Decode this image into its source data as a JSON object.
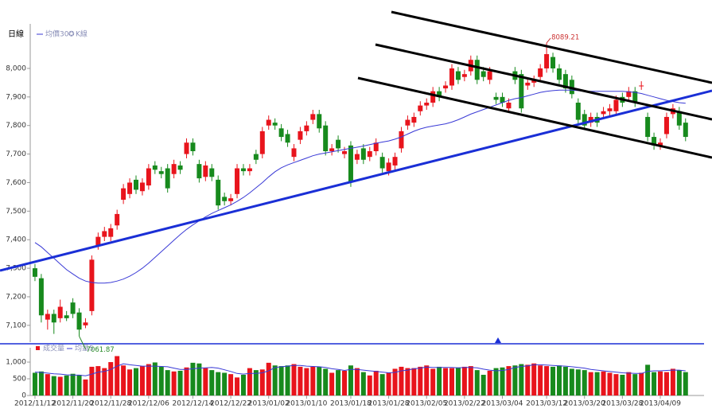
{
  "chart_data": [
    {
      "type": "candlestick",
      "title": "日線",
      "legend_name": "K線",
      "up_color": "#e8141c",
      "down_color": "#178a1d",
      "categories": [
        "2012/11/12",
        null,
        null,
        null,
        null,
        null,
        "2012/11/20",
        null,
        null,
        null,
        null,
        null,
        "2012/11/28",
        null,
        null,
        null,
        null,
        null,
        "2012/12/06",
        null,
        null,
        null,
        null,
        null,
        null,
        "2012/12/14",
        null,
        null,
        null,
        null,
        null,
        "2012/12/22",
        null,
        null,
        null,
        null,
        null,
        "2013/01/02",
        null,
        null,
        null,
        null,
        null,
        "2013/01/10",
        null,
        null,
        null,
        null,
        null,
        null,
        "2013/01/18",
        null,
        null,
        null,
        null,
        null,
        "2013/01/28",
        null,
        null,
        null,
        null,
        null,
        "2013/02/05",
        null,
        null,
        null,
        null,
        null,
        "2013/02/22",
        null,
        null,
        null,
        null,
        null,
        "2013/03/04",
        null,
        null,
        null,
        null,
        null,
        null,
        "2013/03/12",
        null,
        null,
        null,
        null,
        null,
        "2013/03/20",
        null,
        null,
        null,
        null,
        null,
        "2013/03/28",
        null,
        null,
        null,
        null,
        null,
        "2013/04/09",
        null,
        null,
        null,
        null
      ],
      "open": [
        7300,
        7265,
        7120,
        7140,
        7125,
        7135,
        7180,
        7145,
        7100,
        7150,
        7380,
        7410,
        7410,
        7450,
        7540,
        7560,
        7610,
        7570,
        7590,
        7660,
        7640,
        7650,
        7630,
        7660,
        7700,
        7740,
        7665,
        7620,
        7650,
        7610,
        7550,
        7535,
        7560,
        7650,
        7640,
        7700,
        7700,
        7800,
        7810,
        7790,
        7770,
        7690,
        7750,
        7780,
        7820,
        7840,
        7800,
        7710,
        7750,
        7700,
        7730,
        7680,
        7720,
        7690,
        7710,
        7690,
        7640,
        7660,
        7720,
        7800,
        7810,
        7850,
        7870,
        7880,
        7920,
        7930,
        7940,
        7990,
        7970,
        7990,
        8030,
        7990,
        7960,
        7900,
        7900,
        7860,
        7990,
        7980,
        7940,
        7950,
        7970,
        8000,
        8040,
        8000,
        7980,
        7960,
        7880,
        7840,
        7810,
        7830,
        7840,
        7850,
        7850,
        7900,
        7900,
        7920,
        7940,
        7830,
        7760,
        7730,
        7770,
        7840,
        7850,
        7810
      ],
      "high": [
        7315,
        7280,
        7155,
        7155,
        7190,
        7150,
        7195,
        7160,
        7125,
        7345,
        7425,
        7445,
        7455,
        7505,
        7595,
        7615,
        7625,
        7615,
        7665,
        7675,
        7655,
        7665,
        7680,
        7675,
        7755,
        7755,
        7680,
        7675,
        7665,
        7625,
        7565,
        7560,
        7665,
        7665,
        7665,
        7715,
        7795,
        7835,
        7825,
        7805,
        7785,
        7735,
        7795,
        7815,
        7855,
        7855,
        7815,
        7735,
        7765,
        7725,
        7745,
        7715,
        7735,
        7725,
        7755,
        7705,
        7685,
        7705,
        7795,
        7835,
        7845,
        7885,
        7895,
        7935,
        7935,
        7955,
        8015,
        8005,
        7995,
        8045,
        8045,
        8005,
        8005,
        7915,
        7915,
        7895,
        8005,
        7995,
        7965,
        7975,
        8015,
        8089.21,
        8055,
        8015,
        7995,
        7975,
        7895,
        7855,
        7845,
        7845,
        7865,
        7875,
        7905,
        7915,
        7935,
        7935,
        7955,
        7845,
        7775,
        7755,
        7845,
        7875,
        7865,
        7825
      ],
      "low": [
        7255,
        7110,
        7085,
        7070,
        7110,
        7115,
        7125,
        7061.87,
        7090,
        7135,
        7365,
        7395,
        7395,
        7435,
        7525,
        7545,
        7560,
        7555,
        7575,
        7630,
        7615,
        7565,
        7615,
        7630,
        7685,
        7695,
        7600,
        7605,
        7605,
        7505,
        7520,
        7520,
        7545,
        7625,
        7625,
        7665,
        7685,
        7785,
        7785,
        7745,
        7725,
        7675,
        7735,
        7765,
        7805,
        7775,
        7695,
        7695,
        7705,
        7685,
        7585,
        7665,
        7665,
        7675,
        7695,
        7635,
        7625,
        7645,
        7705,
        7785,
        7795,
        7835,
        7855,
        7865,
        7885,
        7915,
        7925,
        7945,
        7955,
        7975,
        7945,
        7955,
        7945,
        7875,
        7865,
        7845,
        7945,
        7845,
        7925,
        7935,
        7955,
        7985,
        7985,
        7945,
        7915,
        7895,
        7805,
        7785,
        7795,
        7795,
        7825,
        7835,
        7835,
        7865,
        7885,
        7865,
        7925,
        7745,
        7715,
        7715,
        7755,
        7825,
        7785,
        7745
      ],
      "close": [
        7270,
        7135,
        7140,
        7110,
        7165,
        7125,
        7140,
        7085,
        7110,
        7330,
        7410,
        7430,
        7440,
        7490,
        7580,
        7600,
        7575,
        7600,
        7650,
        7645,
        7630,
        7580,
        7665,
        7645,
        7740,
        7710,
        7615,
        7660,
        7620,
        7520,
        7535,
        7545,
        7650,
        7640,
        7650,
        7680,
        7780,
        7820,
        7800,
        7760,
        7740,
        7720,
        7780,
        7800,
        7840,
        7790,
        7710,
        7720,
        7720,
        7710,
        7600,
        7700,
        7680,
        7710,
        7740,
        7650,
        7670,
        7690,
        7780,
        7820,
        7830,
        7870,
        7880,
        7920,
        7900,
        7940,
        8000,
        7960,
        7980,
        8030,
        7960,
        7970,
        7990,
        7890,
        7880,
        7880,
        7960,
        7860,
        7950,
        7960,
        8000,
        8050,
        8000,
        7960,
        7930,
        7910,
        7820,
        7800,
        7830,
        7810,
        7850,
        7860,
        7890,
        7880,
        7920,
        7880,
        7940,
        7760,
        7730,
        7740,
        7830,
        7860,
        7800,
        7760
      ],
      "series": [
        {
          "name": "均價30",
          "color": "#3a3ad6",
          "values": [
            7390,
            7375,
            7355,
            7335,
            7315,
            7295,
            7280,
            7265,
            7255,
            7250,
            7248,
            7248,
            7250,
            7255,
            7262,
            7272,
            7285,
            7300,
            7318,
            7338,
            7358,
            7378,
            7398,
            7418,
            7436,
            7452,
            7466,
            7480,
            7492,
            7502,
            7512,
            7522,
            7534,
            7548,
            7564,
            7582,
            7600,
            7620,
            7638,
            7652,
            7662,
            7670,
            7678,
            7686,
            7694,
            7700,
            7704,
            7708,
            7712,
            7716,
            7720,
            7724,
            7728,
            7733,
            7738,
            7742,
            7746,
            7752,
            7760,
            7770,
            7780,
            7788,
            7794,
            7798,
            7802,
            7806,
            7812,
            7820,
            7830,
            7840,
            7848,
            7856,
            7864,
            7872,
            7880,
            7888,
            7894,
            7898,
            7904,
            7910,
            7916,
            7920,
            7922,
            7924,
            7924,
            7924,
            7922,
            7920,
            7920,
            7920,
            7920,
            7920,
            7920,
            7920,
            7918,
            7916,
            7912,
            7906,
            7900,
            7894,
            7888,
            7884,
            7880,
            7878
          ]
        }
      ],
      "ylim": [
        7041,
        8156
      ],
      "yticks": [
        {
          "value": 7100,
          "label": "7,100"
        },
        {
          "value": 7200,
          "label": "7,200"
        },
        {
          "value": 7300,
          "label": "7,300"
        },
        {
          "value": 7400,
          "label": "7,400"
        },
        {
          "value": 7500,
          "label": "7,500"
        },
        {
          "value": 7600,
          "label": "7,600"
        },
        {
          "value": 7700,
          "label": "7,700"
        },
        {
          "value": 7800,
          "label": "7,800"
        },
        {
          "value": 7900,
          "label": "7,900"
        },
        {
          "value": 8000,
          "label": "8,000"
        }
      ],
      "extreme_labels": {
        "high": "8089.21",
        "low": "7061.87"
      }
    },
    {
      "type": "volume",
      "name": "成交量",
      "values": [
        680,
        720,
        640,
        580,
        560,
        600,
        650,
        620,
        480,
        860,
        880,
        820,
        1000,
        1180,
        900,
        780,
        820,
        880,
        940,
        990,
        860,
        760,
        720,
        740,
        840,
        980,
        960,
        820,
        760,
        700,
        680,
        640,
        540,
        620,
        820,
        760,
        780,
        980,
        900,
        880,
        900,
        940,
        860,
        820,
        860,
        860,
        800,
        680,
        760,
        740,
        900,
        820,
        700,
        600,
        740,
        640,
        680,
        800,
        860,
        820,
        820,
        860,
        900,
        800,
        860,
        820,
        820,
        840,
        860,
        880,
        760,
        620,
        740,
        820,
        840,
        880,
        900,
        940,
        920,
        960,
        900,
        880,
        860,
        900,
        860,
        800,
        780,
        760,
        700,
        700,
        720,
        680,
        640,
        620,
        700,
        640,
        680,
        920,
        700,
        720,
        700,
        800,
        760,
        700
      ],
      "series": [
        {
          "name": "均量5",
          "color": "#3a3ad6",
          "values": [
            700,
            690,
            670,
            650,
            640,
            620,
            610,
            610,
            590,
            640,
            700,
            720,
            780,
            880,
            950,
            920,
            900,
            880,
            880,
            880,
            870,
            860,
            820,
            780,
            780,
            800,
            820,
            830,
            840,
            820,
            770,
            720,
            660,
            640,
            660,
            660,
            680,
            740,
            840,
            860,
            880,
            900,
            900,
            880,
            870,
            860,
            840,
            800,
            780,
            750,
            780,
            780,
            760,
            740,
            720,
            700,
            680,
            690,
            740,
            760,
            800,
            820,
            850,
            840,
            840,
            840,
            840,
            830,
            840,
            840,
            830,
            790,
            760,
            740,
            750,
            780,
            840,
            870,
            890,
            920,
            920,
            910,
            900,
            890,
            880,
            860,
            840,
            820,
            780,
            760,
            740,
            720,
            700,
            680,
            670,
            660,
            660,
            720,
            740,
            740,
            750,
            760,
            760,
            740
          ]
        }
      ],
      "ylim": [
        0,
        1430
      ],
      "yticks": [
        0,
        500,
        {
          "value": 1000,
          "label": "1,000"
        }
      ]
    }
  ]
}
